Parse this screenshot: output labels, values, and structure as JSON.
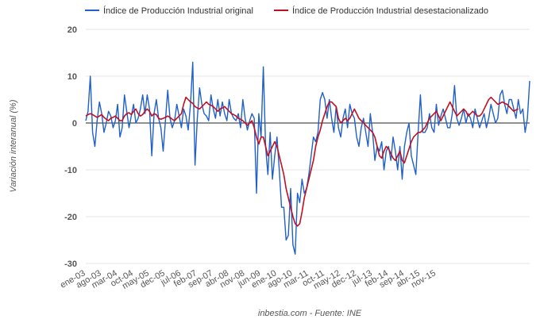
{
  "chart_data": {
    "type": "line",
    "ylabel": "Variación interanual (%)",
    "source": "inbestia.com - Fuente: INE",
    "ylim": [
      -30,
      20
    ],
    "yticks": [
      -30,
      -20,
      -10,
      0,
      10,
      20
    ],
    "x_start": "2003-01",
    "x_end": "2016-03",
    "xtick_labels": [
      "ene-03",
      "ago-03",
      "mar-04",
      "oct-04",
      "may-05",
      "dec-05",
      "jul-06",
      "feb-07",
      "sep-07",
      "abr-08",
      "nov-08",
      "jun-09",
      "ene-10",
      "ago-10",
      "mar-11",
      "oct-11",
      "may-12",
      "dec-12",
      "jul-13",
      "feb-14",
      "sep-14",
      "abr-15",
      "nov-15"
    ],
    "grid": true,
    "legend_position": "top",
    "series": [
      {
        "name": "Índice de Producción Industrial original",
        "color": "#2060c8",
        "values": [
          0.5,
          2.5,
          10,
          -2,
          -5,
          0.5,
          4.5,
          2,
          -2,
          0,
          2.5,
          1.5,
          -1,
          0.5,
          4,
          -3,
          -1,
          6,
          2.5,
          -1,
          1.5,
          4,
          0,
          1,
          3,
          6,
          2,
          6,
          3,
          -7,
          2,
          5,
          1,
          -1,
          -6,
          0.5,
          7,
          1,
          -1,
          0.5,
          4,
          1.5,
          -1,
          3,
          1.5,
          -1.5,
          4,
          13,
          -9,
          1,
          7.5,
          4,
          2,
          1.5,
          0.5,
          6,
          3,
          1,
          5,
          1.5,
          4.5,
          2,
          0.5,
          5,
          2,
          1,
          0.5,
          2,
          -1,
          5,
          1,
          -1.5,
          0.5,
          2,
          1,
          -15,
          2,
          -3,
          12,
          -5,
          -11,
          -2,
          -12,
          -7,
          -3,
          -10,
          -18,
          -18,
          -25,
          -24,
          -14,
          -26,
          -28,
          -15,
          -17,
          -12,
          -15,
          -14,
          -11,
          -7,
          -3,
          -4,
          -2,
          5,
          6.5,
          5,
          1,
          5,
          1,
          -2,
          3.5,
          -1,
          -3,
          1,
          3,
          -1,
          4,
          2,
          1,
          -3,
          -5,
          -1,
          1,
          -2,
          -5,
          2,
          -2,
          -8,
          -5,
          -6,
          -4,
          -10,
          -6,
          -5,
          -8,
          -3,
          -6,
          -10,
          -5,
          -12,
          -5,
          -2,
          0,
          -7,
          -9,
          -11,
          -2,
          6,
          -2,
          -2,
          -1,
          2,
          -1,
          -2,
          4,
          -0.5,
          1.5,
          3,
          1,
          -1,
          -1,
          2,
          8,
          1,
          -0.5,
          1,
          3,
          0,
          2,
          1,
          -1,
          3,
          1,
          -1,
          0.5,
          2,
          -1,
          1,
          4,
          2,
          0,
          1,
          6,
          7,
          4,
          2,
          5,
          5,
          3,
          1,
          5,
          2,
          3,
          -2,
          1,
          9
        ]
      },
      {
        "name": "Índice de Producción Industrial desestacionalizado",
        "color": "#c01020",
        "values": [
          1.5,
          1.8,
          2,
          1.8,
          1.5,
          1.2,
          1.5,
          1.8,
          1.2,
          0.8,
          0.5,
          1,
          1.2,
          1.5,
          1,
          0.5,
          0.5,
          1.5,
          2,
          2.2,
          1.8,
          2.5,
          3,
          2,
          1.5,
          1.8,
          2.5,
          3,
          2.5,
          1.5,
          2,
          1.8,
          1,
          0.8,
          1,
          1.2,
          1.5,
          1.2,
          0.8,
          0.5,
          1,
          1.5,
          2,
          4,
          5.5,
          5,
          4.5,
          4.2,
          3.5,
          3.2,
          3,
          3.5,
          4,
          4.5,
          4,
          3.8,
          3.5,
          3,
          2.5,
          3,
          3.2,
          3.5,
          3,
          2.5,
          2,
          1.8,
          1.5,
          1,
          0.8,
          0.5,
          0,
          -0.5,
          0,
          0.5,
          -1,
          -3,
          -4.5,
          -3,
          -3,
          -5,
          -7,
          -6,
          -5,
          -4,
          -5,
          -7,
          -9,
          -11,
          -14,
          -16,
          -18,
          -20,
          -21.5,
          -22,
          -21.5,
          -19,
          -16,
          -14,
          -12,
          -10,
          -8,
          -5,
          -3,
          -1.5,
          0.5,
          2,
          3.5,
          4.5,
          4.5,
          4,
          3.5,
          1,
          0,
          0.5,
          1,
          0.5,
          1,
          2,
          3,
          2,
          1,
          0.5,
          0,
          -0.5,
          -1,
          -1.5,
          -2,
          -3,
          -5,
          -7,
          -7.5,
          -6,
          -5,
          -5.5,
          -6.5,
          -7.5,
          -8,
          -7,
          -6,
          -8,
          -8.5,
          -7,
          -5.5,
          -4,
          -3,
          -2.5,
          -2,
          -2,
          -1.5,
          -1,
          0,
          1,
          1.5,
          2,
          2.5,
          1.5,
          0.5,
          1.5,
          2.5,
          3.5,
          4.5,
          3.5,
          2.5,
          1.5,
          2,
          2.5,
          3,
          2.5,
          1.5,
          2,
          2.5,
          2,
          1.5,
          1.5,
          2,
          3,
          4,
          5,
          5.5,
          5,
          4.5,
          4,
          4.2,
          4.5,
          4.2,
          4,
          3.5,
          3,
          2.5,
          2.8,
          3
        ]
      }
    ]
  }
}
